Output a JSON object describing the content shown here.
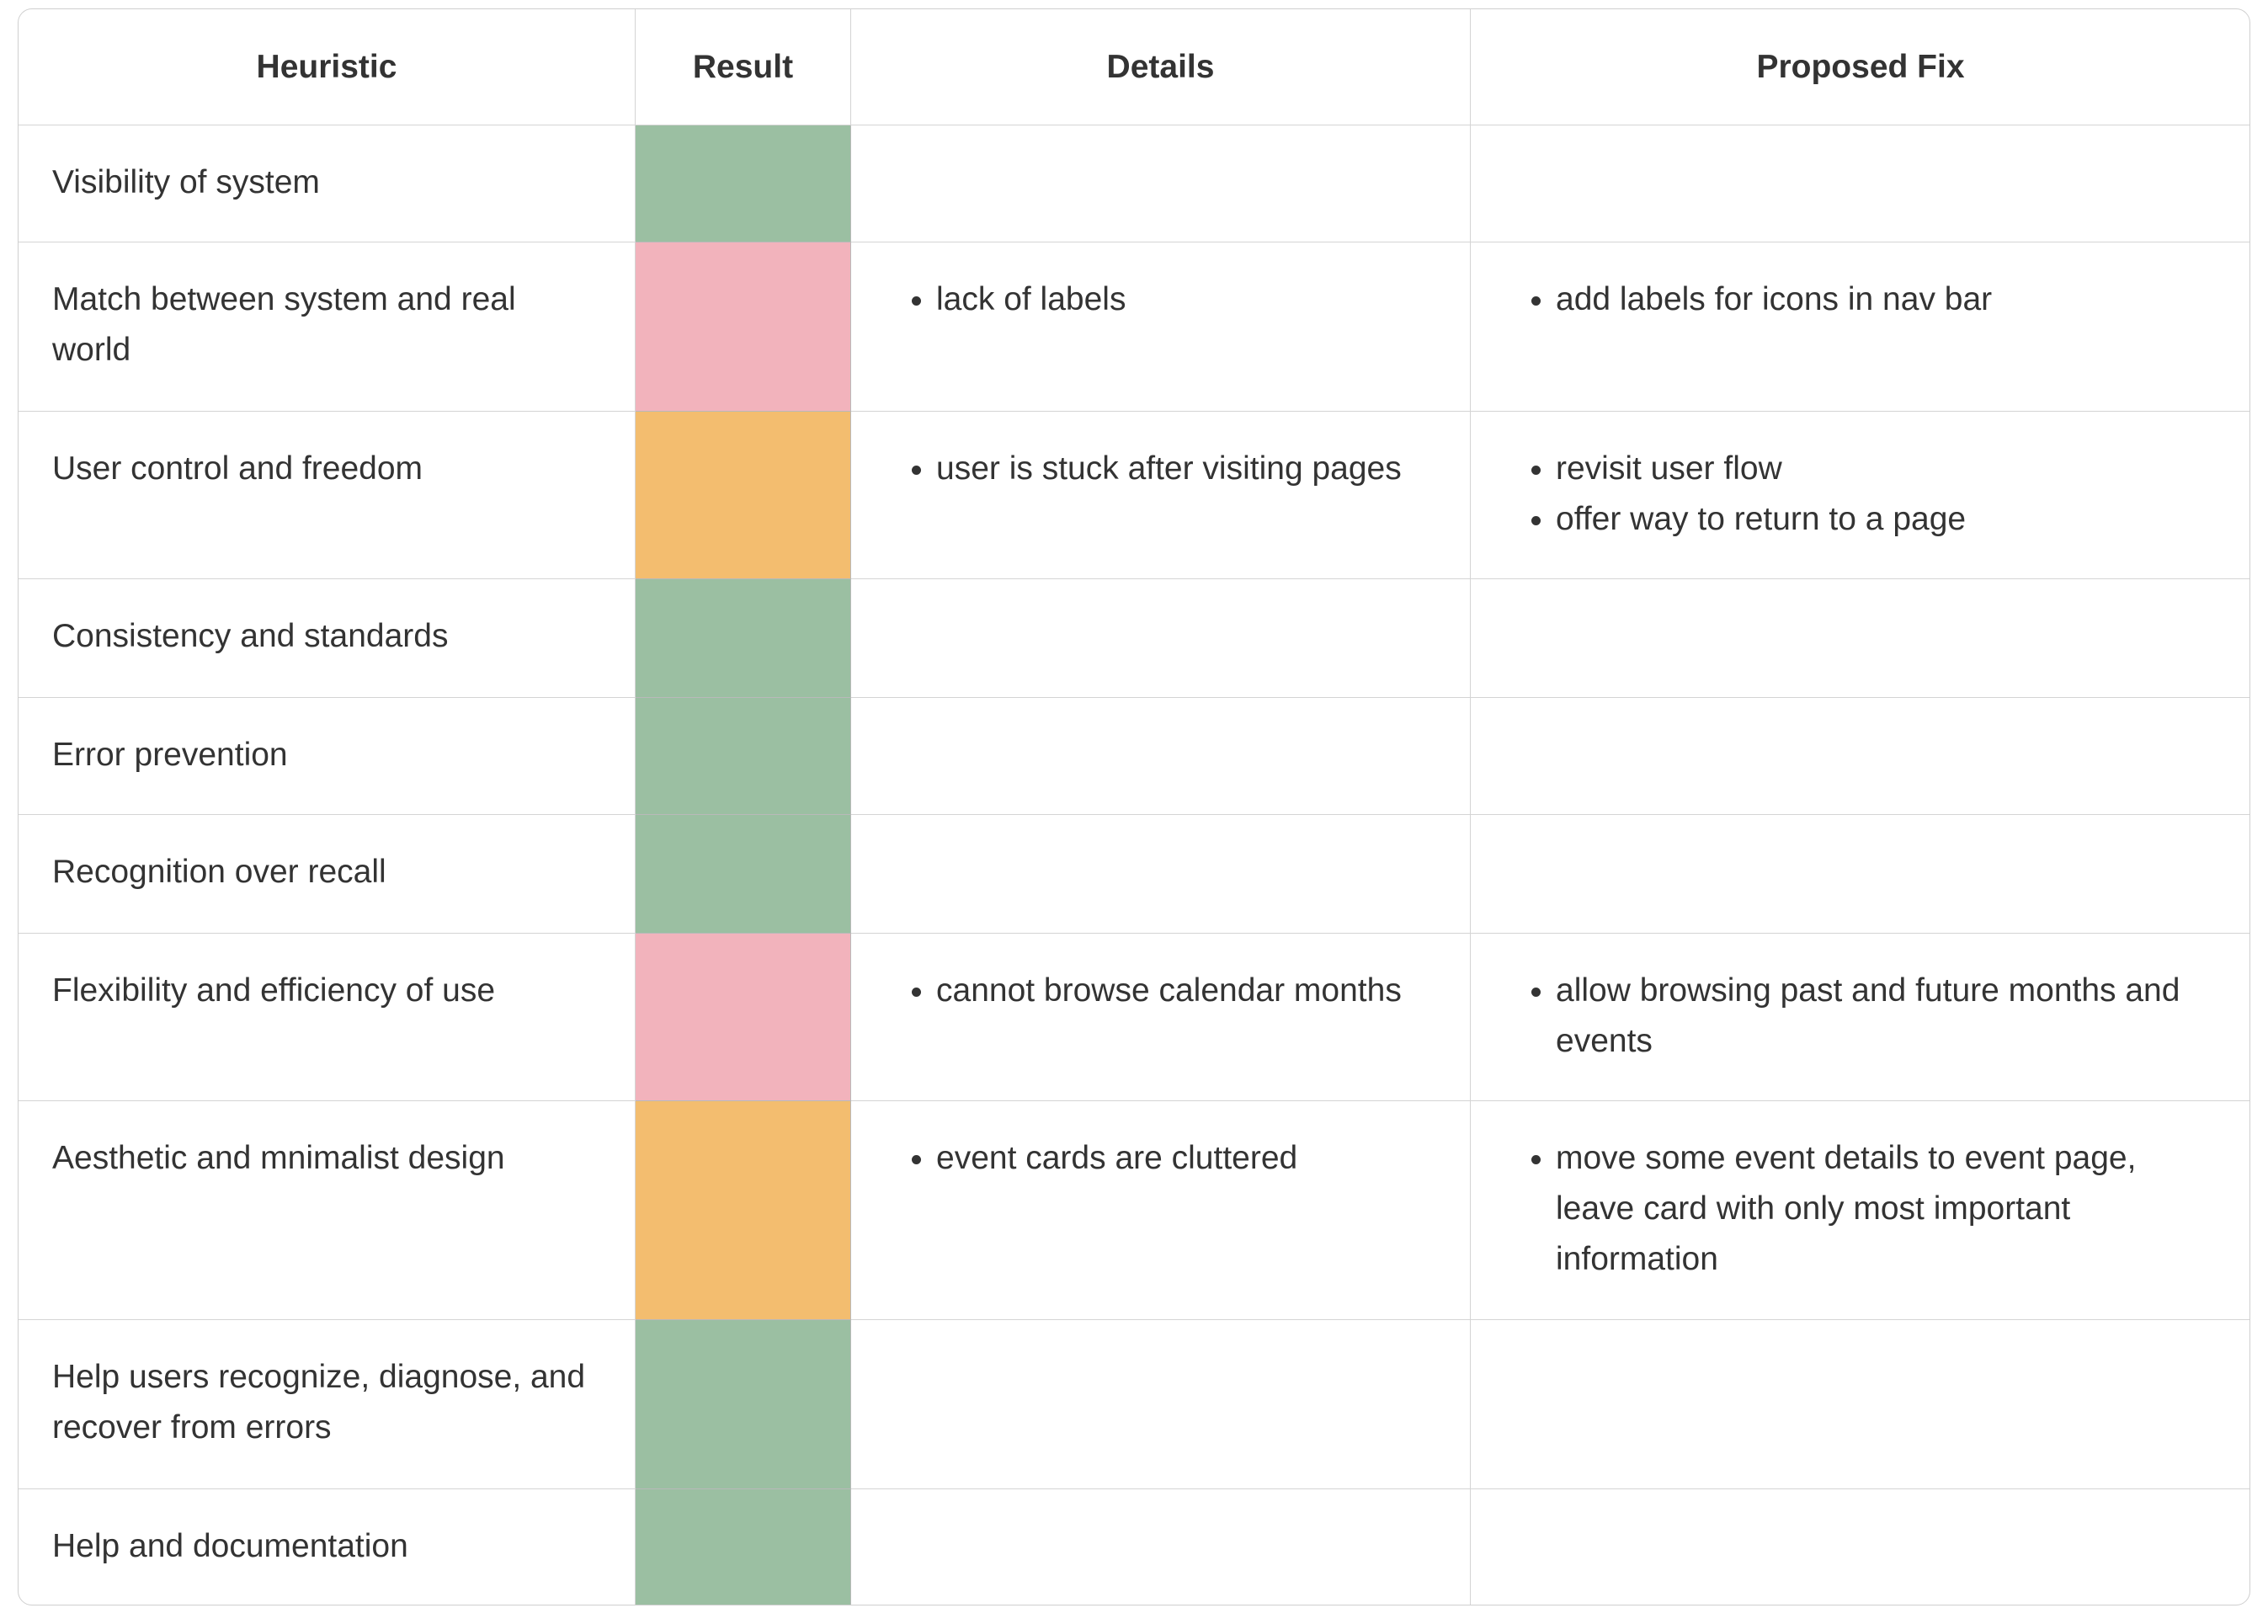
{
  "table": {
    "headers": [
      "Heuristic",
      "Result",
      "Details",
      "Proposed Fix"
    ],
    "rows": [
      {
        "heuristic": "Visibility of system",
        "result_color": "#9bbfa2",
        "details": [],
        "fixes": []
      },
      {
        "heuristic": "Match between system and real world",
        "result_color": "#f2b3bc",
        "details": [
          "lack of labels"
        ],
        "fixes": [
          "add labels for icons in nav bar"
        ]
      },
      {
        "heuristic": "User control and freedom",
        "result_color": "#f3bd6f",
        "details": [
          "user is stuck after visiting pages"
        ],
        "fixes": [
          "revisit user flow",
          "offer way to return to a page"
        ]
      },
      {
        "heuristic": "Consistency and standards",
        "result_color": "#9bbfa2",
        "details": [],
        "fixes": []
      },
      {
        "heuristic": "Error prevention",
        "result_color": "#9bbfa2",
        "details": [],
        "fixes": []
      },
      {
        "heuristic": "Recognition over recall",
        "result_color": "#9bbfa2",
        "details": [],
        "fixes": []
      },
      {
        "heuristic": "Flexibility and efficiency of use",
        "result_color": "#f2b3bc",
        "details": [
          "cannot browse calendar months"
        ],
        "fixes": [
          "allow browsing past and future months and events"
        ]
      },
      {
        "heuristic": "Aesthetic and mnimalist design",
        "result_color": "#f3bd6f",
        "details": [
          "event cards are cluttered"
        ],
        "fixes": [
          "move some event details to event page, leave card with only most important information"
        ]
      },
      {
        "heuristic": "Help users recognize, diagnose, and recover from errors",
        "result_color": "#9bbfa2",
        "details": [],
        "fixes": []
      },
      {
        "heuristic": "Help and documentation",
        "result_color": "#9bbfa2",
        "details": [],
        "fixes": []
      }
    ]
  }
}
